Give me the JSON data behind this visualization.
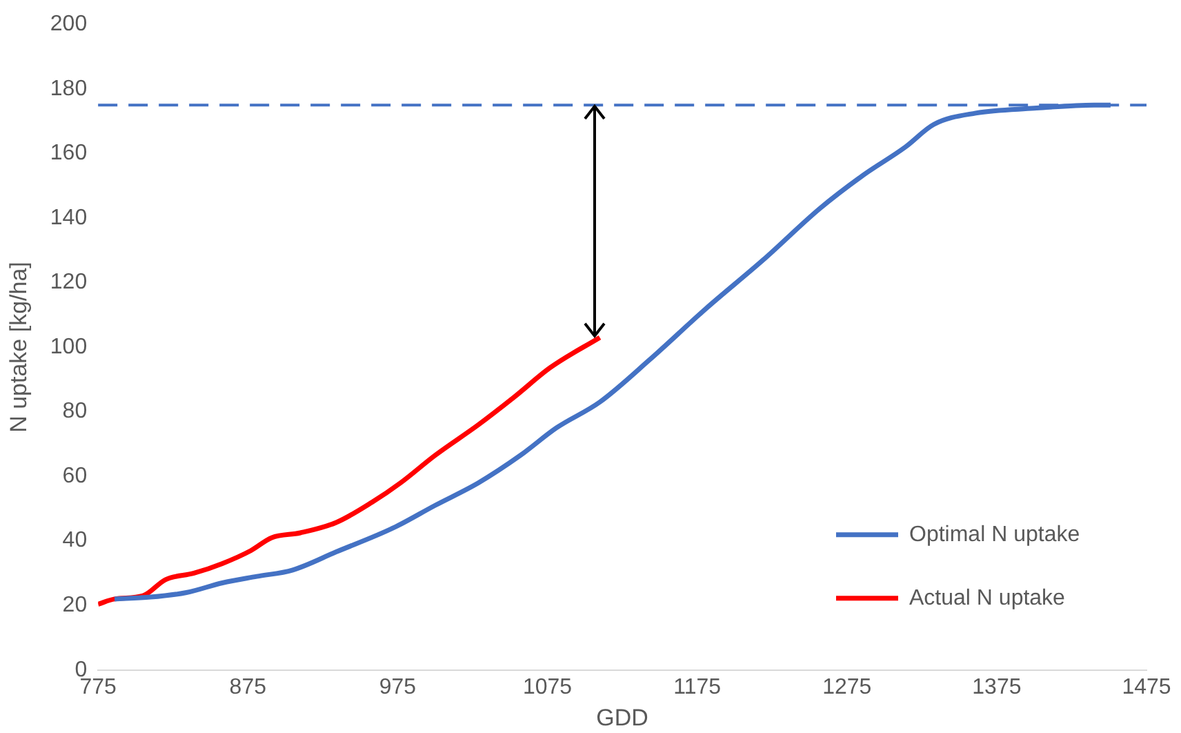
{
  "chart_data": {
    "type": "line",
    "xlabel": "GDD",
    "ylabel": "N uptake [kg/ha]",
    "xlim": [
      775,
      1475
    ],
    "xticks": [
      775,
      875,
      975,
      1075,
      1175,
      1275,
      1375,
      1475
    ],
    "ylim": [
      0,
      200
    ],
    "yticks": [
      0,
      20,
      40,
      60,
      80,
      100,
      120,
      140,
      160,
      180,
      200
    ],
    "grid": false,
    "legend": "bottom right",
    "marker": "none",
    "line_style": "solid",
    "series": [
      {
        "name": "Optimal N uptake",
        "color": "#4472c4",
        "x": [
          786,
          810,
          834,
          858,
          881,
          905,
          934,
          972,
          1000,
          1029,
          1057,
          1081,
          1110,
          1143,
          1181,
          1219,
          1257,
          1285,
          1314,
          1333,
          1361,
          1400,
          1440,
          1451
        ],
        "values": [
          22,
          22.6,
          24,
          27,
          29,
          31,
          36.6,
          44,
          51,
          58,
          66.5,
          75,
          83,
          96,
          112,
          127,
          143,
          153,
          162,
          169,
          172.5,
          174,
          175,
          175
        ]
      },
      {
        "name": "Actual N uptake",
        "color": "#ff0000",
        "x": [
          775,
          786,
          805,
          820,
          839,
          858,
          877,
          891,
          910,
          934,
          958,
          977,
          1000,
          1029,
          1053,
          1077,
          1110
        ],
        "values": [
          20.4,
          22,
          23,
          28,
          30,
          33,
          37,
          41,
          42.5,
          45.7,
          52,
          58,
          66.5,
          76,
          84.6,
          93.7,
          103
        ]
      }
    ],
    "ref_lines": [
      {
        "axis": "y",
        "value": 175,
        "color": "#4472c4",
        "line_style": "dashed"
      }
    ]
  }
}
